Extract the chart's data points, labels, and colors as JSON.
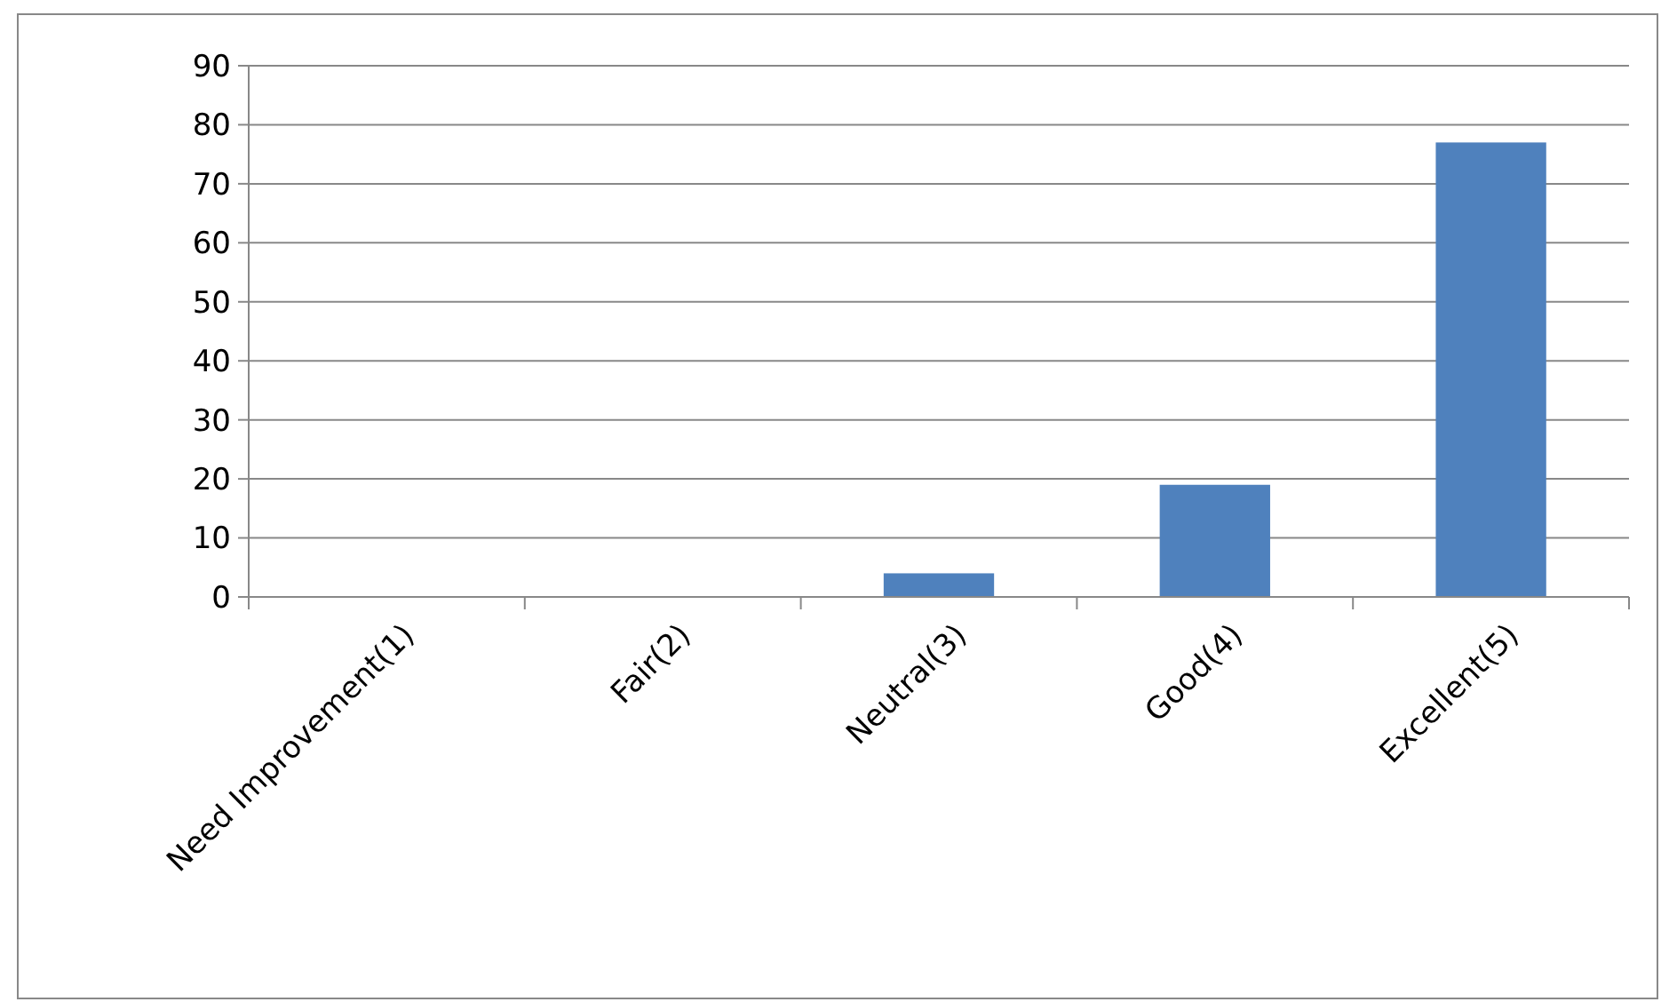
{
  "chart_data": {
    "type": "bar",
    "categories": [
      "Need Improvement(1)",
      "Fair(2)",
      "Neutral(3)",
      "Good(4)",
      "Excellent(5)"
    ],
    "values": [
      0,
      0,
      4,
      19,
      77
    ],
    "color": "#4f81bd",
    "ylim": [
      0,
      90
    ],
    "yticks": [
      0,
      10,
      20,
      30,
      40,
      50,
      60,
      70,
      80,
      90
    ],
    "grid": "y"
  }
}
